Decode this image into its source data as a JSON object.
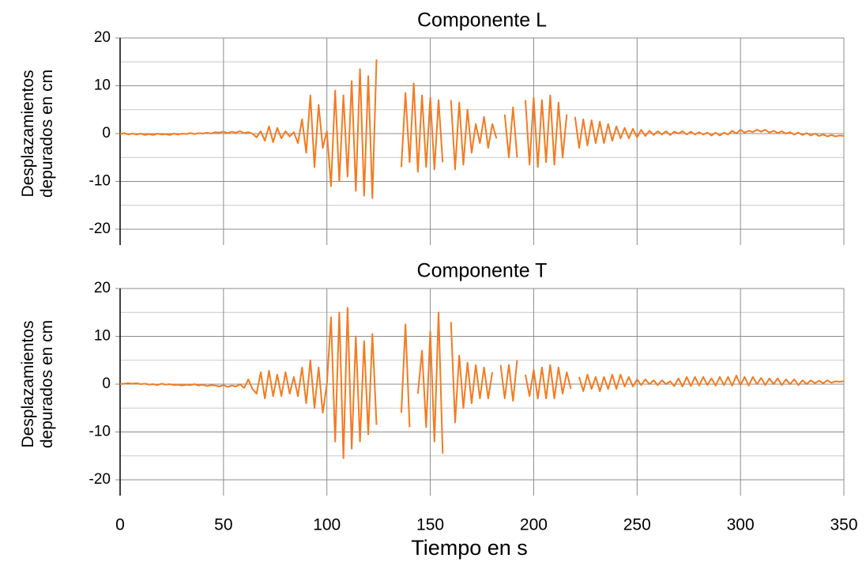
{
  "chart_data": [
    {
      "type": "line",
      "title": "Componente L",
      "ylabel": "Desplazamientos depurados en cm",
      "color": "#f47b20",
      "xlim": [
        0,
        350
      ],
      "xticks": [
        0,
        50,
        100,
        150,
        200,
        250,
        300,
        350
      ],
      "show_xtick_labels": false,
      "ylim": [
        -20,
        20
      ],
      "yticks": [
        -20,
        -10,
        0,
        10,
        20
      ],
      "yminorticks": [
        -15,
        -5,
        5,
        15
      ],
      "grid": true,
      "x": [
        0,
        2,
        4,
        6,
        8,
        10,
        12,
        14,
        16,
        18,
        20,
        22,
        24,
        26,
        28,
        30,
        32,
        34,
        36,
        38,
        40,
        42,
        44,
        46,
        48,
        50,
        52,
        54,
        56,
        58,
        60,
        62,
        64,
        66,
        68,
        70,
        72,
        74,
        76,
        78,
        80,
        82,
        84,
        86,
        88,
        90,
        92,
        94,
        96,
        98,
        100,
        102,
        104,
        106,
        108,
        110,
        112,
        114,
        116,
        118,
        120,
        122,
        124,
        126,
        128,
        130,
        132,
        134,
        136,
        138,
        140,
        142,
        144,
        146,
        148,
        150,
        152,
        154,
        156,
        158,
        160,
        162,
        164,
        166,
        168,
        170,
        172,
        174,
        176,
        178,
        180,
        182,
        184,
        186,
        188,
        190,
        192,
        194,
        196,
        198,
        200,
        202,
        204,
        206,
        208,
        210,
        212,
        214,
        216,
        218,
        220,
        222,
        224,
        226,
        228,
        230,
        232,
        234,
        236,
        238,
        240,
        242,
        244,
        246,
        248,
        250,
        252,
        254,
        256,
        258,
        260,
        262,
        264,
        266,
        268,
        270,
        272,
        274,
        276,
        278,
        280,
        282,
        284,
        286,
        288,
        290,
        292,
        294,
        296,
        298,
        300,
        302,
        304,
        306,
        308,
        310,
        312,
        314,
        316,
        318,
        320,
        322,
        324,
        326,
        328,
        330,
        332,
        334,
        336,
        338,
        340,
        342,
        344,
        346,
        348,
        350
      ],
      "values": [
        -0.1,
        0.1,
        -0.2,
        0,
        -0.2,
        0,
        -0.3,
        -0.1,
        -0.3,
        0,
        -0.2,
        -0.1,
        -0.3,
        0,
        -0.2,
        0,
        -0.1,
        0.1,
        -0.1,
        0.1,
        0,
        0.2,
        0,
        0.3,
        0.2,
        0.4,
        0.1,
        0.4,
        0.2,
        0.5,
        0.1,
        0.3,
        0,
        -0.8,
        0.5,
        -1.5,
        1.5,
        -1.8,
        1.2,
        -1,
        0.5,
        -0.6,
        0.3,
        -2,
        3,
        -4,
        8,
        -7,
        6,
        -3,
        0.5,
        -11,
        9,
        -10,
        8,
        -9,
        11,
        -12,
        13.5,
        -13,
        12,
        -13.5,
        15.5,
        null,
        null,
        null,
        null,
        null,
        -7,
        8.5,
        -6,
        10.5,
        -8,
        8,
        -7,
        7.5,
        -7.5,
        7,
        -6,
        null,
        7,
        -7.5,
        6.5,
        -6.5,
        5,
        -4,
        2,
        -2,
        3.5,
        -3,
        2,
        -1,
        null,
        4,
        -5,
        5.5,
        -5,
        null,
        7,
        -6.5,
        7.5,
        -7,
        7,
        -6,
        8,
        -6.5,
        6.5,
        -5,
        4,
        null,
        3.5,
        -3,
        3,
        -2.5,
        2.8,
        -2,
        2.5,
        -2,
        2,
        -1.5,
        1.5,
        -1,
        1.2,
        -1,
        1,
        -0.8,
        0.8,
        -0.5,
        0.6,
        -0.3,
        0.5,
        -0.2,
        0.5,
        -0.3,
        0.4,
        0,
        0.5,
        -0.2,
        0.4,
        -0.2,
        0.3,
        -0.2,
        0.2,
        -0.4,
        0.2,
        -0.4,
        0.2,
        -0.2,
        0.6,
        0,
        0.8,
        0.2,
        0.6,
        0.3,
        0.8,
        0.4,
        0.8,
        0.2,
        0.6,
        0.1,
        0.5,
        0,
        0.3,
        -0.2,
        0.2,
        -0.3,
        0.1,
        -0.4,
        0,
        -0.5,
        -0.2,
        -0.6,
        -0.3,
        -0.6,
        -0.4,
        -0.5
      ]
    },
    {
      "type": "line",
      "title": "Componente T",
      "ylabel": "Desplazamientos depurados en cm",
      "xlabel": "Tiempo en s",
      "color": "#f47b20",
      "xlim": [
        0,
        350
      ],
      "xticks": [
        0,
        50,
        100,
        150,
        200,
        250,
        300,
        350
      ],
      "show_xtick_labels": true,
      "ylim": [
        -20,
        20
      ],
      "yticks": [
        -20,
        -10,
        0,
        10,
        20
      ],
      "yminorticks": [
        -15,
        -5,
        5,
        15
      ],
      "grid": true,
      "x": [
        0,
        2,
        4,
        6,
        8,
        10,
        12,
        14,
        16,
        18,
        20,
        22,
        24,
        26,
        28,
        30,
        32,
        34,
        36,
        38,
        40,
        42,
        44,
        46,
        48,
        50,
        52,
        54,
        56,
        58,
        60,
        62,
        64,
        66,
        68,
        70,
        72,
        74,
        76,
        78,
        80,
        82,
        84,
        86,
        88,
        90,
        92,
        94,
        96,
        98,
        100,
        102,
        104,
        106,
        108,
        110,
        112,
        114,
        116,
        118,
        120,
        122,
        124,
        126,
        128,
        130,
        132,
        134,
        136,
        138,
        140,
        142,
        144,
        146,
        148,
        150,
        152,
        154,
        156,
        158,
        160,
        162,
        164,
        166,
        168,
        170,
        172,
        174,
        176,
        178,
        180,
        182,
        184,
        186,
        188,
        190,
        192,
        194,
        196,
        198,
        200,
        202,
        204,
        206,
        208,
        210,
        212,
        214,
        216,
        218,
        220,
        222,
        224,
        226,
        228,
        230,
        232,
        234,
        236,
        238,
        240,
        242,
        244,
        246,
        248,
        250,
        252,
        254,
        256,
        258,
        260,
        262,
        264,
        266,
        268,
        270,
        272,
        274,
        276,
        278,
        280,
        282,
        284,
        286,
        288,
        290,
        292,
        294,
        296,
        298,
        300,
        302,
        304,
        306,
        308,
        310,
        312,
        314,
        316,
        318,
        320,
        322,
        324,
        326,
        328,
        330,
        332,
        334,
        336,
        338,
        340,
        342,
        344,
        346,
        348,
        350
      ],
      "values": [
        0,
        0.1,
        0.2,
        0.1,
        0.2,
        0,
        0.1,
        -0.1,
        0,
        -0.2,
        0.1,
        -0.1,
        0,
        -0.2,
        -0.1,
        -0.3,
        -0.1,
        -0.2,
        0,
        -0.3,
        -0.1,
        -0.4,
        -0.2,
        -0.3,
        -0.5,
        -0.2,
        -0.6,
        -0.3,
        -0.5,
        0,
        -0.8,
        1,
        -1,
        -2,
        2.5,
        -3,
        2.8,
        -2.5,
        2,
        -2.5,
        2.5,
        -2,
        1.5,
        -2.5,
        3.5,
        -4,
        5,
        -5,
        3.5,
        -6,
        0,
        14,
        -12,
        15,
        -15.5,
        16,
        -13.5,
        10,
        -12,
        9,
        -10.5,
        10.5,
        -8.5,
        null,
        null,
        null,
        null,
        null,
        -6,
        12.5,
        -9,
        null,
        -2,
        7,
        -9,
        11,
        -12,
        15,
        -14.5,
        null,
        13,
        -8,
        6,
        -5,
        4.5,
        -4,
        4,
        -3,
        3.5,
        -3,
        2.5,
        null,
        4,
        -3,
        4,
        -3.5,
        5,
        null,
        2,
        -2.5,
        3,
        -3,
        3.5,
        -3,
        4,
        -3,
        3.5,
        -2,
        2.5,
        -1,
        null,
        1.5,
        -1.5,
        2,
        -1,
        1.5,
        -1.5,
        1.5,
        -1,
        2,
        -1,
        2,
        -0.5,
        1.5,
        -0.5,
        1,
        -0.2,
        1,
        0,
        0.8,
        -0.2,
        0.8,
        0,
        0.6,
        -0.4,
        1.2,
        -0.5,
        1.5,
        -0.4,
        1.5,
        -0.3,
        1.5,
        -0.2,
        1.2,
        -0.3,
        1.5,
        -0.2,
        1.5,
        -0.3,
        1.8,
        -0.2,
        1.5,
        -0.3,
        1.5,
        0,
        1.3,
        -0.2,
        1.2,
        0,
        1.2,
        -0.2,
        1,
        0,
        1,
        -0.2,
        0.8,
        0,
        0.8,
        0.2,
        0.7,
        0.2,
        0.8,
        0.3,
        0.6,
        0.5,
        0.6
      ]
    }
  ]
}
